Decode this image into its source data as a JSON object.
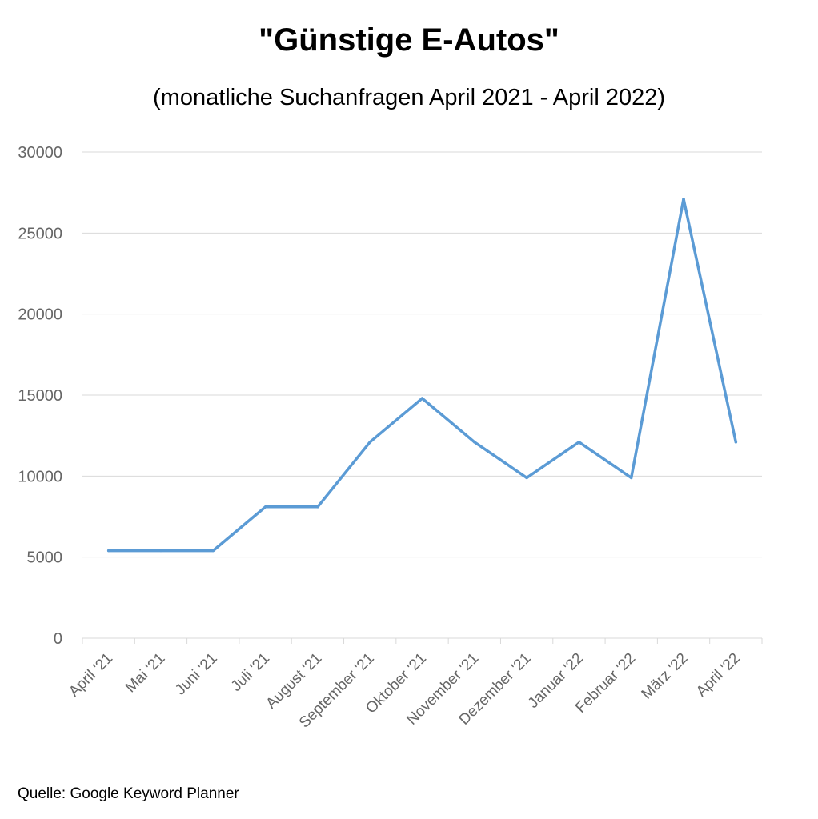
{
  "title": "\"Günstige E-Autos\"",
  "subtitle": "(monatliche Suchanfragen April 2021 - April 2022)",
  "source": "Quelle: Google Keyword Planner",
  "chart_data": {
    "type": "line",
    "title": "\"Günstige E-Autos\"",
    "subtitle": "(monatliche Suchanfragen April 2021 - April 2022)",
    "xlabel": "",
    "ylabel": "",
    "categories": [
      "April '21",
      "Mai '21",
      "Juni '21",
      "Juli '21",
      "August '21",
      "September '21",
      "Oktober '21",
      "November '21",
      "Dezember '21",
      "Januar '22",
      "Februar '22",
      "März '22",
      "April '22"
    ],
    "series": [
      {
        "values": [
          5400,
          5400,
          5400,
          8100,
          8100,
          12100,
          14800,
          12100,
          9900,
          12100,
          9900,
          27100,
          12100
        ]
      }
    ],
    "yticks": [
      0,
      5000,
      10000,
      15000,
      20000,
      25000,
      30000
    ],
    "ylim": [
      0,
      30000
    ],
    "grid": true,
    "legend": "none",
    "colors": {
      "line": "#5b9bd5",
      "grid": "#d9d9d9",
      "axis": "#d9d9d9",
      "tick_text": "#666666"
    }
  }
}
